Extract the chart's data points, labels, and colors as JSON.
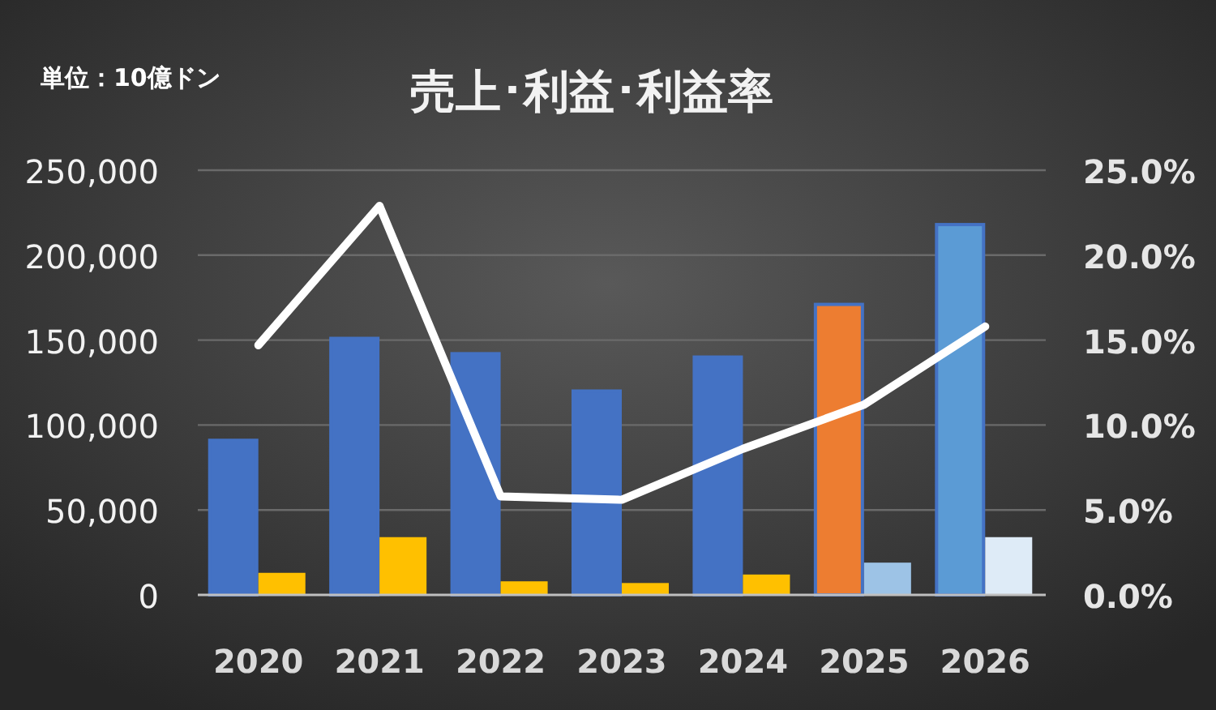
{
  "chart_data": {
    "type": "bar",
    "title": "売上･利益･利益率",
    "annotations": [
      "単位：10億ドン"
    ],
    "categories": [
      "2020",
      "2021",
      "2022",
      "2023",
      "2024",
      "2025",
      "2026"
    ],
    "series": [
      {
        "colors": [
          "#4472c4",
          "#4472c4",
          "#4472c4",
          "#4472c4",
          "#4472c4",
          "#ed7d31",
          "#5b9bd5"
        ],
        "values": [
          91000,
          151000,
          142000,
          120000,
          140000,
          171000,
          218000
        ]
      },
      {
        "colors": [
          "#ffc000",
          "#ffc000",
          "#ffc000",
          "#ffc000",
          "#ffc000",
          "#9dc3e6",
          "#deebf7"
        ],
        "values": [
          13000,
          34000,
          8000,
          7000,
          12000,
          19000,
          34000
        ]
      },
      {
        "type": "line",
        "axis": "y2",
        "color": "#ffffff",
        "values": [
          14.7,
          22.9,
          5.8,
          5.6,
          8.6,
          11.2,
          15.8
        ]
      }
    ],
    "ylim": [
      0,
      250000
    ],
    "yticks": [
      {
        "value": 0,
        "label": "0"
      },
      {
        "value": 50000,
        "label": "50,000"
      },
      {
        "value": 100000,
        "label": "100,000"
      },
      {
        "value": 150000,
        "label": "150,000"
      },
      {
        "value": 200000,
        "label": "200,000"
      },
      {
        "value": 250000,
        "label": "250,000"
      }
    ],
    "y2lim": [
      0,
      25
    ],
    "y2ticks": [
      {
        "value": 0,
        "label": "0.0%"
      },
      {
        "value": 5,
        "label": "5.0%"
      },
      {
        "value": 10,
        "label": "10.0%"
      },
      {
        "value": 15,
        "label": "15.0%"
      },
      {
        "value": 20,
        "label": "20.0%"
      },
      {
        "value": 25,
        "label": "25.0%"
      }
    ],
    "grid": "y"
  }
}
